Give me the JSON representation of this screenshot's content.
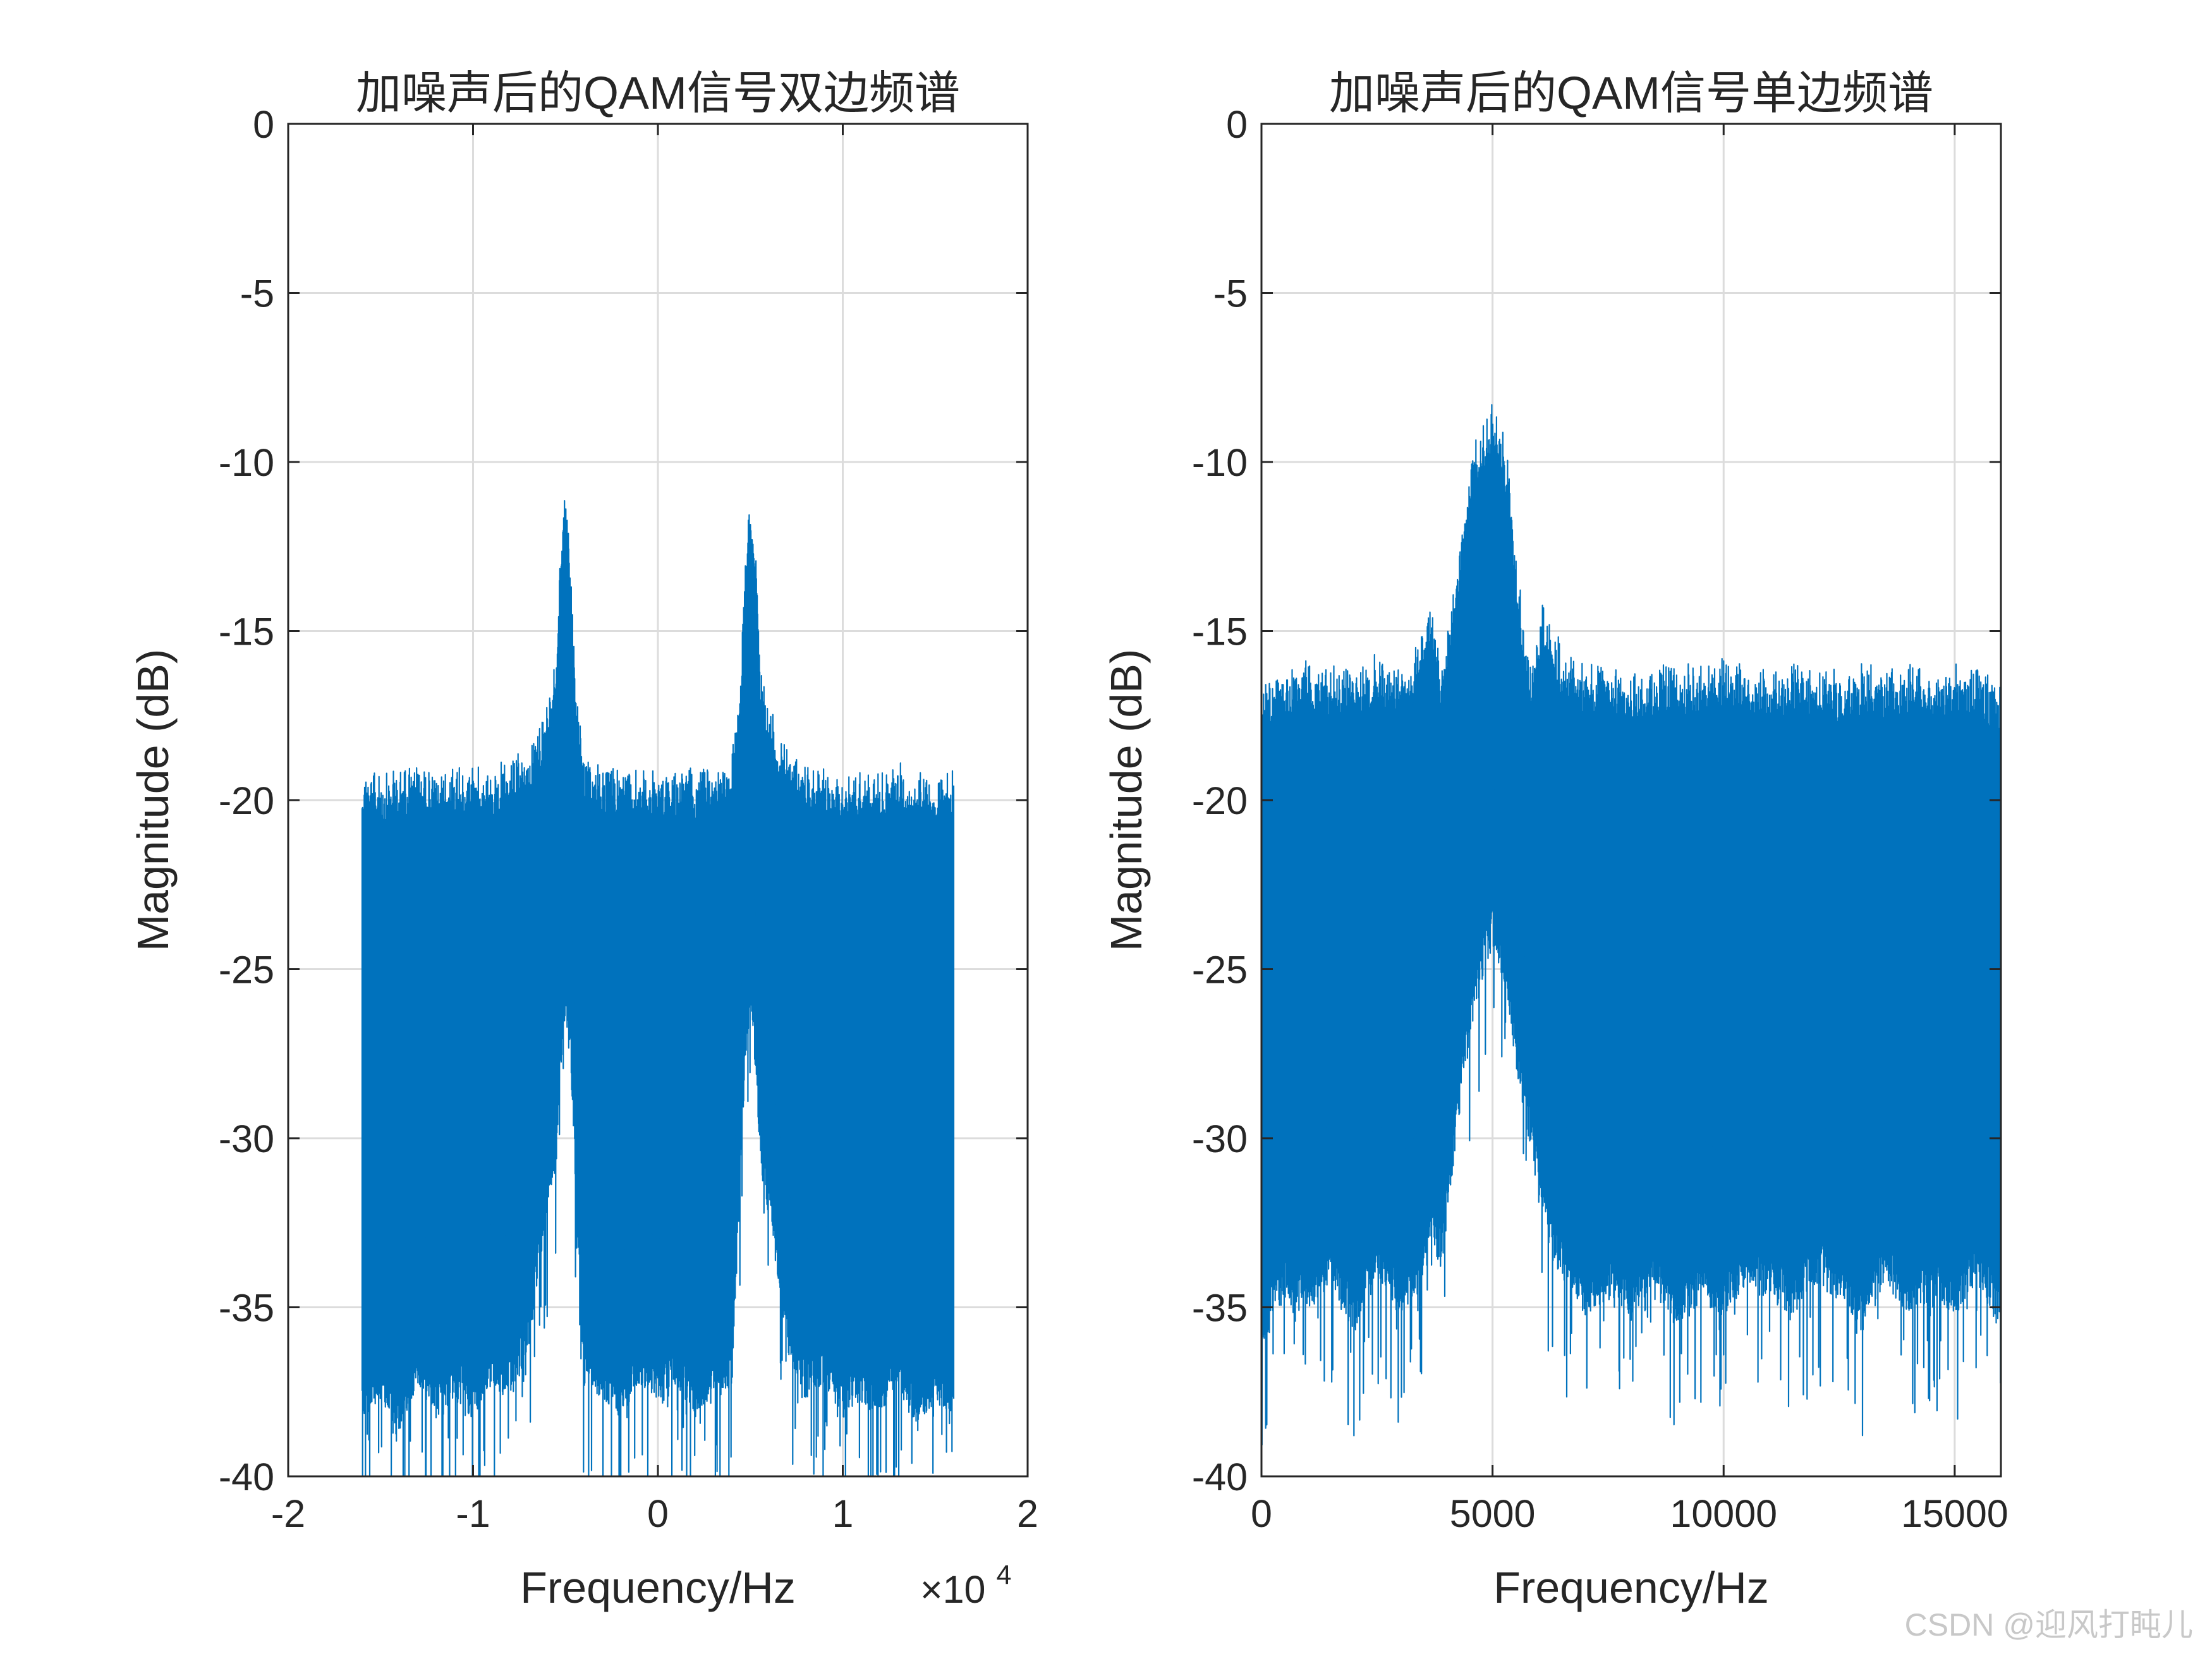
{
  "chart_data": [
    {
      "type": "line",
      "title": "加噪声后的QAM信号双边频谱",
      "xlabel": "Frequency/Hz",
      "ylabel": "Magnitude (dB)",
      "xlim": [
        -20000,
        20000
      ],
      "ylim": [
        -40,
        0
      ],
      "x_ticks": [
        -2,
        -1,
        0,
        1,
        2
      ],
      "x_tick_labels": [
        "-2",
        "-1",
        "0",
        "1",
        "2"
      ],
      "x_exponent_label": "×10",
      "x_exponent_power": "4",
      "y_ticks": [
        0,
        -5,
        -10,
        -15,
        -20,
        -25,
        -30,
        -35,
        -40
      ],
      "y_tick_labels": [
        "0",
        "-5",
        "-10",
        "-15",
        "-20",
        "-25",
        "-30",
        "-35",
        "-40"
      ],
      "grid": true,
      "line_color": "#0072BD",
      "series": [
        {
          "x": [
            -16000,
            -15000,
            -14000,
            -13000,
            -12000,
            -11000,
            -10000,
            -9000,
            -8000,
            -7000,
            -6500,
            -6000,
            -5500,
            -5300,
            -5100,
            -5000,
            -4900,
            -4700,
            -4500,
            -4000,
            -3000,
            -2000,
            -1000,
            0,
            1000,
            2000,
            3000,
            4000,
            4500,
            4700,
            4900,
            5000,
            5100,
            5300,
            5500,
            6000,
            6500,
            7000,
            8000,
            9000,
            10000,
            11000,
            12000,
            13000,
            14000,
            15000,
            16000
          ],
          "y_max": [
            -19.0,
            -19.2,
            -19.0,
            -18.8,
            -19.1,
            -19.0,
            -18.9,
            -19.0,
            -18.7,
            -18.5,
            -17.8,
            -17.0,
            -15.5,
            -12.5,
            -11.0,
            -10.9,
            -11.2,
            -13.0,
            -15.8,
            -18.6,
            -19.0,
            -18.9,
            -19.0,
            -19.0,
            -19.1,
            -19.0,
            -18.9,
            -18.6,
            -15.8,
            -13.0,
            -11.2,
            -10.9,
            -11.0,
            -12.5,
            -15.5,
            -17.0,
            -17.8,
            -18.5,
            -18.7,
            -19.0,
            -18.9,
            -19.0,
            -19.1,
            -18.8,
            -19.0,
            -19.2,
            -19.0
          ],
          "y_min": [
            -37.0,
            -36.5,
            -37.5,
            -36.0,
            -37.0,
            -36.5,
            -37.0,
            -36.0,
            -36.5,
            -35.0,
            -33.0,
            -31.0,
            -29.5,
            -27.0,
            -25.5,
            -25.0,
            -25.5,
            -27.0,
            -29.5,
            -36.0,
            -36.5,
            -37.0,
            -36.0,
            -36.5,
            -36.0,
            -37.0,
            -36.5,
            -36.0,
            -29.5,
            -27.0,
            -25.5,
            -25.0,
            -25.5,
            -27.0,
            -29.5,
            -31.0,
            -33.0,
            -35.0,
            -36.5,
            -36.0,
            -37.0,
            -36.5,
            -37.0,
            -36.0,
            -37.5,
            -36.5,
            -37.0
          ]
        }
      ]
    },
    {
      "type": "line",
      "title": "加噪声后的QAM信号单边频谱",
      "xlabel": "Frequency/Hz",
      "ylabel": "Magnitude (dB)",
      "xlim": [
        0,
        16000
      ],
      "ylim": [
        -40,
        0
      ],
      "x_ticks": [
        0,
        5000,
        10000,
        15000
      ],
      "x_tick_labels": [
        "0",
        "5000",
        "10000",
        "15000"
      ],
      "y_ticks": [
        0,
        -5,
        -10,
        -15,
        -20,
        -25,
        -30,
        -35,
        -40
      ],
      "y_tick_labels": [
        "0",
        "-5",
        "-10",
        "-15",
        "-20",
        "-25",
        "-30",
        "-35",
        "-40"
      ],
      "grid": true,
      "line_color": "#0072BD",
      "series": [
        {
          "x": [
            0,
            500,
            1000,
            1500,
            2000,
            2500,
            3000,
            3300,
            3500,
            3700,
            3900,
            4200,
            4500,
            4700,
            4900,
            5000,
            5100,
            5300,
            5500,
            5800,
            6100,
            6300,
            6500,
            7000,
            7500,
            8000,
            8500,
            9000,
            9500,
            10000,
            10500,
            11000,
            11500,
            12000,
            12500,
            13000,
            13500,
            14000,
            14500,
            15000,
            15500,
            16000
          ],
          "y_max": [
            -16.5,
            -16.0,
            -15.8,
            -16.0,
            -15.9,
            -15.6,
            -16.0,
            -15.5,
            -14.5,
            -14.0,
            -16.0,
            -13.0,
            -10.0,
            -9.0,
            -8.5,
            -8.0,
            -8.4,
            -9.5,
            -12.5,
            -16.0,
            -14.0,
            -14.5,
            -15.5,
            -16.0,
            -15.8,
            -16.2,
            -16.0,
            -15.8,
            -16.0,
            -15.7,
            -16.0,
            -16.1,
            -15.8,
            -16.0,
            -16.1,
            -15.9,
            -16.0,
            -15.9,
            -16.2,
            -15.8,
            -16.0,
            -16.5
          ],
          "y_min": [
            -35.0,
            -33.5,
            -34.0,
            -33.0,
            -34.5,
            -33.0,
            -34.0,
            -33.5,
            -33.0,
            -32.0,
            -32.5,
            -29.0,
            -26.0,
            -24.5,
            -23.5,
            -23.0,
            -23.5,
            -24.5,
            -26.5,
            -29.0,
            -31.0,
            -32.5,
            -33.0,
            -34.0,
            -33.5,
            -34.0,
            -33.0,
            -34.5,
            -33.5,
            -34.0,
            -33.0,
            -33.5,
            -34.0,
            -33.0,
            -33.5,
            -34.5,
            -33.0,
            -34.0,
            -33.5,
            -34.0,
            -33.0,
            -34.5
          ]
        }
      ]
    }
  ],
  "watermark": "CSDN @迎风打盹儿"
}
